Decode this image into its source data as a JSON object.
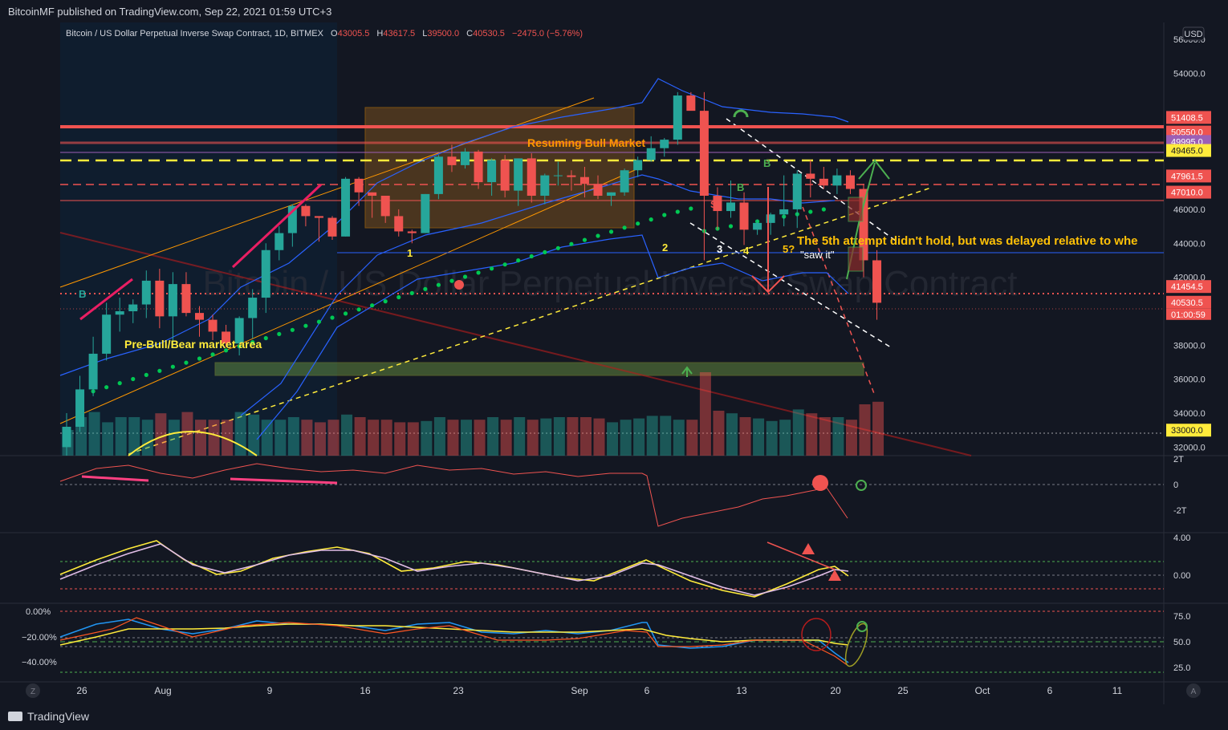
{
  "header": {
    "published": "BitcoinMF published on TradingView.com, Sep 22, 2021 01:59 UTC+3"
  },
  "legend": {
    "symbol": "Bitcoin / US Dollar Perpetual Inverse Swap Contract, 1D, BITMEX",
    "o_label": "O",
    "o": "43005.5",
    "h_label": "H",
    "h": "43617.5",
    "l_label": "L",
    "l": "39500.0",
    "c_label": "C",
    "c": "40530.5",
    "change": "−2475.0 (−5.76%)"
  },
  "currency_button": "USD",
  "watermark": "Bitcoin / US Dollar Perpetual Inverse Swap Contract",
  "footer": {
    "brand": "TradingView"
  },
  "buttons": {
    "z": "Z",
    "a": "A"
  },
  "colors": {
    "up": "#26a69a",
    "down": "#ef5350",
    "bg": "#131722",
    "band": "#2962ff",
    "yellow": "#ffeb3b",
    "orange": "#ff9800",
    "green": "#4caf50"
  },
  "chart_data": {
    "type": "candlestick",
    "x_ticks": [
      "26",
      "Aug",
      "9",
      "16",
      "23",
      "Sep",
      "6",
      "13",
      "20",
      "25",
      "Oct",
      "6",
      "11"
    ],
    "price_axis": [
      "56000.0",
      "54000.0",
      "51408.5",
      "50550.0",
      "49995.0",
      "49465.0",
      "47961.5",
      "47010.0",
      "46000.0",
      "44000.0",
      "42000.0",
      "41454.5",
      "40530.5",
      "38000.0",
      "36000.0",
      "34000.0",
      "33000.0",
      "32000.0"
    ],
    "price_tags": [
      {
        "value": "51408.5",
        "color": "#ef5350"
      },
      {
        "value": "50550.0",
        "color": "#ef5350"
      },
      {
        "value": "49995.0",
        "color": "#9c5fb5"
      },
      {
        "value": "49465.0",
        "color": "#ffeb3b"
      },
      {
        "value": "47961.5",
        "color": "#ef5350"
      },
      {
        "value": "47010.0",
        "color": "#ef5350"
      },
      {
        "value": "41454.5",
        "color": "#ef5350"
      },
      {
        "value": "40530.5",
        "color": "#ef5350"
      },
      {
        "value": "33000.0",
        "color": "#ffeb3b"
      }
    ],
    "countdown": "01:00:59",
    "ylim": [
      31500,
      57000
    ],
    "candles": [
      [
        32000,
        34000,
        31500,
        33200
      ],
      [
        33200,
        36200,
        32900,
        35400
      ],
      [
        35400,
        38500,
        35000,
        37500
      ],
      [
        37500,
        40500,
        37100,
        39800
      ],
      [
        39800,
        40800,
        38800,
        40000
      ],
      [
        40000,
        40700,
        39300,
        40400
      ],
      [
        40400,
        42400,
        39600,
        41800
      ],
      [
        41800,
        42500,
        39000,
        39700
      ],
      [
        39700,
        42300,
        38000,
        41600
      ],
      [
        41600,
        42300,
        39700,
        39900
      ],
      [
        39900,
        40300,
        38500,
        39500
      ],
      [
        39500,
        39800,
        38300,
        38800
      ],
      [
        38800,
        39200,
        37900,
        38100
      ],
      [
        38100,
        39700,
        37400,
        39600
      ],
      [
        39600,
        41300,
        38400,
        40800
      ],
      [
        40800,
        44000,
        39900,
        43600
      ],
      [
        43600,
        45000,
        43000,
        44600
      ],
      [
        44600,
        46300,
        43800,
        46200
      ],
      [
        46200,
        46300,
        45000,
        45600
      ],
      [
        45600,
        45600,
        44100,
        45500
      ],
      [
        45500,
        45600,
        44200,
        44400
      ],
      [
        44400,
        47900,
        44400,
        47800
      ],
      [
        47800,
        47900,
        46200,
        47000
      ],
      [
        47000,
        47000,
        45500,
        46800
      ],
      [
        46800,
        46800,
        45200,
        45600
      ],
      [
        45600,
        46000,
        44400,
        44700
      ],
      [
        44700,
        44800,
        44000,
        44600
      ],
      [
        44600,
        46900,
        44600,
        46900
      ],
      [
        46900,
        49200,
        46600,
        49100
      ],
      [
        49100,
        49800,
        48200,
        48600
      ],
      [
        48600,
        49600,
        48400,
        49400
      ],
      [
        49400,
        49500,
        47200,
        47600
      ],
      [
        47600,
        49000,
        46800,
        48900
      ],
      [
        48900,
        49200,
        46700,
        47100
      ],
      [
        47100,
        49000,
        46200,
        49000
      ],
      [
        49000,
        49300,
        46400,
        46800
      ],
      [
        46800,
        48100,
        46300,
        48000
      ],
      [
        48000,
        48800,
        47400,
        48000
      ],
      [
        48000,
        48300,
        47100,
        47900
      ],
      [
        47900,
        48500,
        46700,
        47500
      ],
      [
        47500,
        48000,
        46600,
        46800
      ],
      [
        46800,
        47000,
        46200,
        47000
      ],
      [
        47000,
        48400,
        46800,
        48300
      ],
      [
        48300,
        49100,
        47900,
        48900
      ],
      [
        48900,
        50300,
        48800,
        49600
      ],
      [
        49600,
        50200,
        49100,
        50100
      ],
      [
        50100,
        52900,
        49800,
        52700
      ],
      [
        52700,
        52900,
        51900,
        51800
      ],
      [
        51800,
        52900,
        43000,
        46800
      ],
      [
        46800,
        47300,
        44800,
        45900
      ],
      [
        45900,
        47700,
        45500,
        46400
      ],
      [
        46400,
        47000,
        43900,
        44800
      ],
      [
        44800,
        45400,
        44500,
        45200
      ],
      [
        45200,
        45800,
        44500,
        45700
      ],
      [
        45700,
        48000,
        45000,
        46000
      ],
      [
        46000,
        48300,
        44900,
        48100
      ],
      [
        48100,
        48900,
        46700,
        47800
      ],
      [
        47800,
        48500,
        47200,
        47400
      ],
      [
        47400,
        48400,
        46900,
        48000
      ],
      [
        48000,
        48300,
        46900,
        47200
      ],
      [
        47200,
        47500,
        42000,
        43000
      ],
      [
        43000,
        43600,
        39500,
        40500
      ]
    ],
    "volumes": [
      20,
      30,
      34,
      26,
      30,
      30,
      28,
      33,
      28,
      34,
      28,
      28,
      28,
      34,
      32,
      28,
      28,
      30,
      28,
      26,
      28,
      32,
      30,
      28,
      28,
      26,
      26,
      27,
      30,
      28,
      28,
      28,
      30,
      28,
      30,
      28,
      29,
      30,
      30,
      30,
      29,
      26,
      28,
      29,
      31,
      31,
      28,
      28,
      65,
      35,
      33,
      30,
      29,
      27,
      28,
      36,
      33,
      30,
      30,
      28,
      40,
      42
    ]
  }
}
